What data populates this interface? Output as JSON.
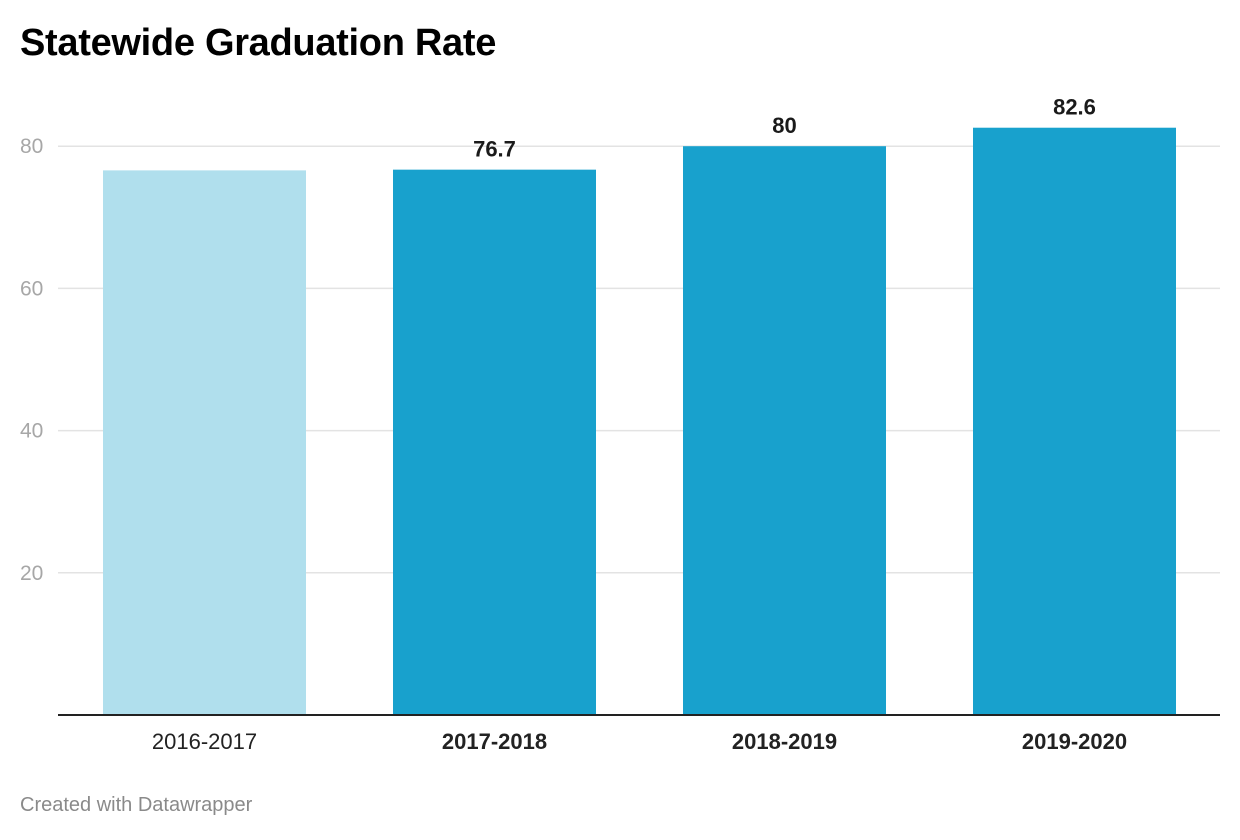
{
  "page": {
    "title": "Statewide Graduation Rate",
    "credit": "Created with Datawrapper"
  },
  "colors": {
    "bar": "#18a1cd",
    "bar_faded": "#b0dfed",
    "grid": "#e3e3e3",
    "axis": "#222222",
    "tick_text": "#a7a7a7",
    "category_text": "#222222",
    "value_label": "#1a1a1a"
  },
  "chart_data": {
    "type": "bar",
    "title": "Statewide Graduation Rate",
    "xlabel": "",
    "ylabel": "",
    "categories": [
      "2016-2017",
      "2017-2018",
      "2018-2019",
      "2019-2020"
    ],
    "values": [
      76.6,
      76.7,
      80,
      82.6
    ],
    "value_labels": [
      "",
      "76.7",
      "80",
      "82.6"
    ],
    "highlighted": [
      false,
      true,
      true,
      true
    ],
    "yticks": [
      20,
      40,
      60,
      80
    ],
    "ylim": [
      0,
      87
    ],
    "grid": true,
    "legend": "none"
  }
}
